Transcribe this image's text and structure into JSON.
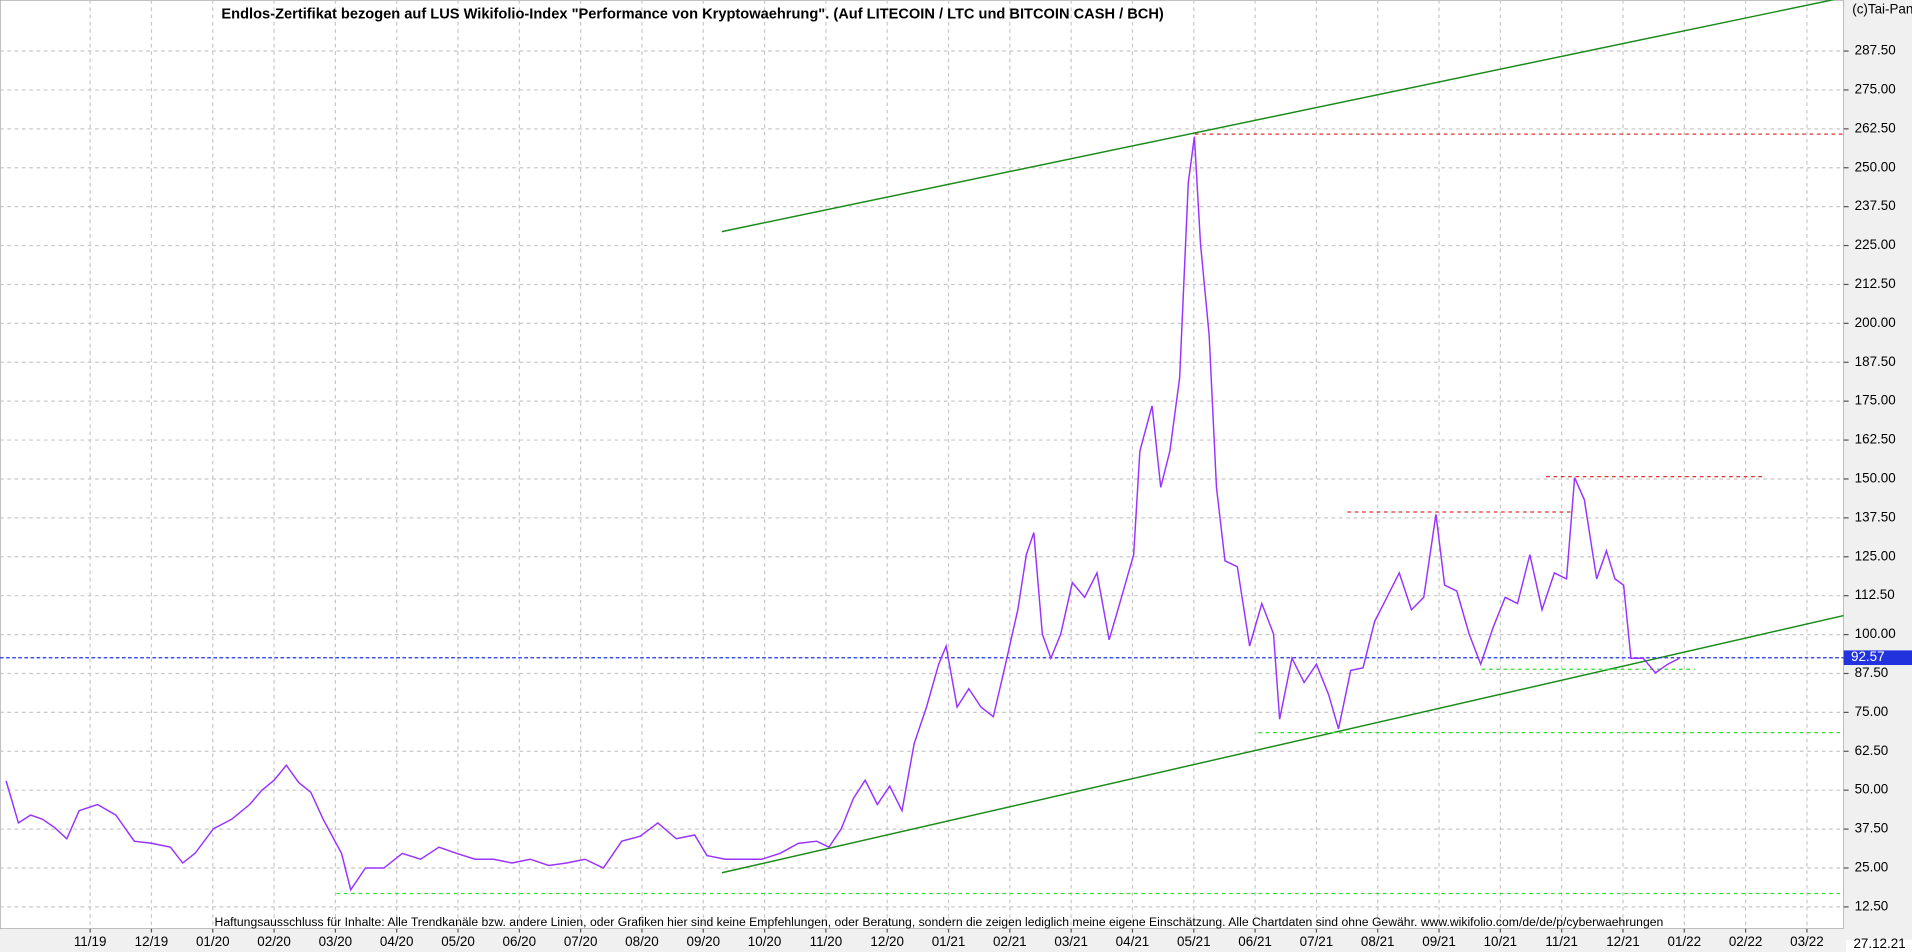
{
  "chart_data": {
    "type": "line",
    "title": "Endlos-Zertifikat bezogen auf LUS Wikifolio-Index \"Performance von Kryptowaehrung\". (Auf LITECOIN / LTC und BITCOIN CASH / BCH)",
    "copyright": "(c)Tai-Pan",
    "footer": "Haftungsausschluss für Inhalte: Alle Trendkanäle bzw. andere Linien, oder Grafiken hier sind keine Empfehlungen, oder Beratung, sondern die zeigen lediglich meine eigene Einschätzung. Alle Chartdaten sind ohne Gewähr.  www.wikifolio.com/de/de/p/cyberwaehrungen",
    "current_price": 92.57,
    "current_date": "27.12.21",
    "xlim": [
      -1.47,
      28.6
    ],
    "ylim": [
      5.45,
      303.9
    ],
    "grid": true,
    "xticks": [
      {
        "value": 0,
        "label": "11/19"
      },
      {
        "value": 1,
        "label": "12/19"
      },
      {
        "value": 2,
        "label": "01/20"
      },
      {
        "value": 3,
        "label": "02/20"
      },
      {
        "value": 4,
        "label": "03/20"
      },
      {
        "value": 5,
        "label": "04/20"
      },
      {
        "value": 6,
        "label": "05/20"
      },
      {
        "value": 7,
        "label": "06/20"
      },
      {
        "value": 8,
        "label": "07/20"
      },
      {
        "value": 9,
        "label": "08/20"
      },
      {
        "value": 10,
        "label": "09/20"
      },
      {
        "value": 11,
        "label": "10/20"
      },
      {
        "value": 12,
        "label": "11/20"
      },
      {
        "value": 13,
        "label": "12/20"
      },
      {
        "value": 14,
        "label": "01/21"
      },
      {
        "value": 15,
        "label": "02/21"
      },
      {
        "value": 16,
        "label": "03/21"
      },
      {
        "value": 17,
        "label": "04/21"
      },
      {
        "value": 18,
        "label": "05/21"
      },
      {
        "value": 19,
        "label": "06/21"
      },
      {
        "value": 20,
        "label": "07/21"
      },
      {
        "value": 21,
        "label": "08/21"
      },
      {
        "value": 22,
        "label": "09/21"
      },
      {
        "value": 23,
        "label": "10/21"
      },
      {
        "value": 24,
        "label": "11/21"
      },
      {
        "value": 25,
        "label": "12/21"
      },
      {
        "value": 26,
        "label": "01/22"
      },
      {
        "value": 27,
        "label": "02/22"
      },
      {
        "value": 28,
        "label": "03/22"
      }
    ],
    "yticks": [
      {
        "value": 12.5,
        "label": "12.50"
      },
      {
        "value": 25,
        "label": "25.00"
      },
      {
        "value": 37.5,
        "label": "37.50"
      },
      {
        "value": 50,
        "label": "50.00"
      },
      {
        "value": 62.5,
        "label": "62.50"
      },
      {
        "value": 75,
        "label": "75.00"
      },
      {
        "value": 87.5,
        "label": "87.50"
      },
      {
        "value": 100,
        "label": "100.00"
      },
      {
        "value": 112.5,
        "label": "112.50"
      },
      {
        "value": 125,
        "label": "125.00"
      },
      {
        "value": 137.5,
        "label": "137.50"
      },
      {
        "value": 150,
        "label": "150.00"
      },
      {
        "value": 162.5,
        "label": "162.50"
      },
      {
        "value": 175,
        "label": "175.00"
      },
      {
        "value": 187.5,
        "label": "187.50"
      },
      {
        "value": 200,
        "label": "200.00"
      },
      {
        "value": 212.5,
        "label": "212.50"
      },
      {
        "value": 225,
        "label": "225.00"
      },
      {
        "value": 237.5,
        "label": "237.50"
      },
      {
        "value": 250,
        "label": "250.00"
      },
      {
        "value": 262.5,
        "label": "262.50"
      },
      {
        "value": 275,
        "label": "275.00"
      },
      {
        "value": 287.5,
        "label": "287.50"
      }
    ],
    "series": [
      {
        "color": "#9933ff",
        "x": [
          -1.37,
          -1.17,
          -0.97,
          -0.78,
          -0.58,
          -0.38,
          -0.18,
          0.12,
          0.42,
          0.72,
          1.01,
          1.31,
          1.51,
          1.71,
          2.01,
          2.31,
          2.6,
          2.8,
          3.0,
          3.2,
          3.4,
          3.6,
          3.8,
          4.1,
          4.25,
          4.49,
          4.79,
          5.09,
          5.39,
          5.69,
          5.98,
          6.28,
          6.58,
          6.88,
          7.18,
          7.48,
          7.77,
          8.07,
          8.37,
          8.67,
          8.97,
          9.26,
          9.56,
          9.86,
          10.06,
          10.36,
          10.66,
          10.95,
          11.25,
          11.55,
          11.85,
          12.05,
          12.25,
          12.45,
          12.64,
          12.84,
          13.04,
          13.24,
          13.44,
          13.64,
          13.84,
          13.96,
          14.14,
          14.33,
          14.53,
          14.73,
          14.93,
          15.13,
          15.27,
          15.39,
          15.53,
          15.67,
          15.83,
          16.02,
          16.22,
          16.42,
          16.62,
          16.82,
          17.02,
          17.12,
          17.32,
          17.46,
          17.61,
          17.77,
          17.91,
          18.01,
          18.11,
          18.25,
          18.37,
          18.51,
          18.71,
          18.91,
          19.11,
          19.3,
          19.4,
          19.6,
          19.8,
          20.0,
          20.2,
          20.36,
          20.56,
          20.76,
          20.95,
          21.15,
          21.35,
          21.55,
          21.75,
          21.95,
          22.09,
          22.29,
          22.49,
          22.68,
          22.88,
          23.08,
          23.28,
          23.48,
          23.68,
          23.88,
          24.08,
          24.21,
          24.37,
          24.57,
          24.73,
          24.87,
          25.01,
          25.13,
          25.33,
          25.53,
          25.73,
          25.92
        ],
        "values": [
          53,
          39.5,
          42,
          40.7,
          38,
          34.4,
          43.4,
          45.4,
          42,
          33.6,
          32.9,
          31.7,
          26.6,
          29.7,
          37.6,
          40.7,
          45.4,
          50,
          53.2,
          58,
          52.5,
          49.3,
          40.7,
          29.7,
          18,
          25,
          25,
          29.7,
          27.8,
          31.7,
          29.7,
          27.8,
          27.8,
          26.6,
          27.8,
          25.8,
          26.6,
          27.8,
          25,
          33.6,
          35.2,
          39.5,
          34.4,
          35.6,
          29,
          27.8,
          27.8,
          27.8,
          29.7,
          32.9,
          33.6,
          31.7,
          37.6,
          47.4,
          53.2,
          45.4,
          51.3,
          43.4,
          65,
          76.7,
          90.5,
          96.3,
          76.7,
          82.6,
          76.7,
          73.6,
          90.5,
          108,
          125.7,
          132.8,
          100.2,
          92.4,
          100.2,
          116.7,
          112,
          119.8,
          98.3,
          112,
          125.7,
          159,
          173.5,
          147.3,
          159,
          182.5,
          245.2,
          260,
          225.6,
          196.2,
          147.3,
          123.7,
          121.8,
          96.3,
          110,
          100.2,
          72.8,
          92.4,
          84.6,
          90.5,
          80.7,
          69.7,
          88.5,
          89.3,
          104.2,
          112,
          119.8,
          108,
          112,
          138.6,
          115.9,
          114,
          100.2,
          90.5,
          102.2,
          112,
          110,
          125.7,
          108,
          119.8,
          117.9,
          150.4,
          143.3,
          117.9,
          126.9,
          117.9,
          115.9,
          92.4,
          92.4,
          87.7,
          90.5,
          92.4
        ]
      }
    ]
  }
}
